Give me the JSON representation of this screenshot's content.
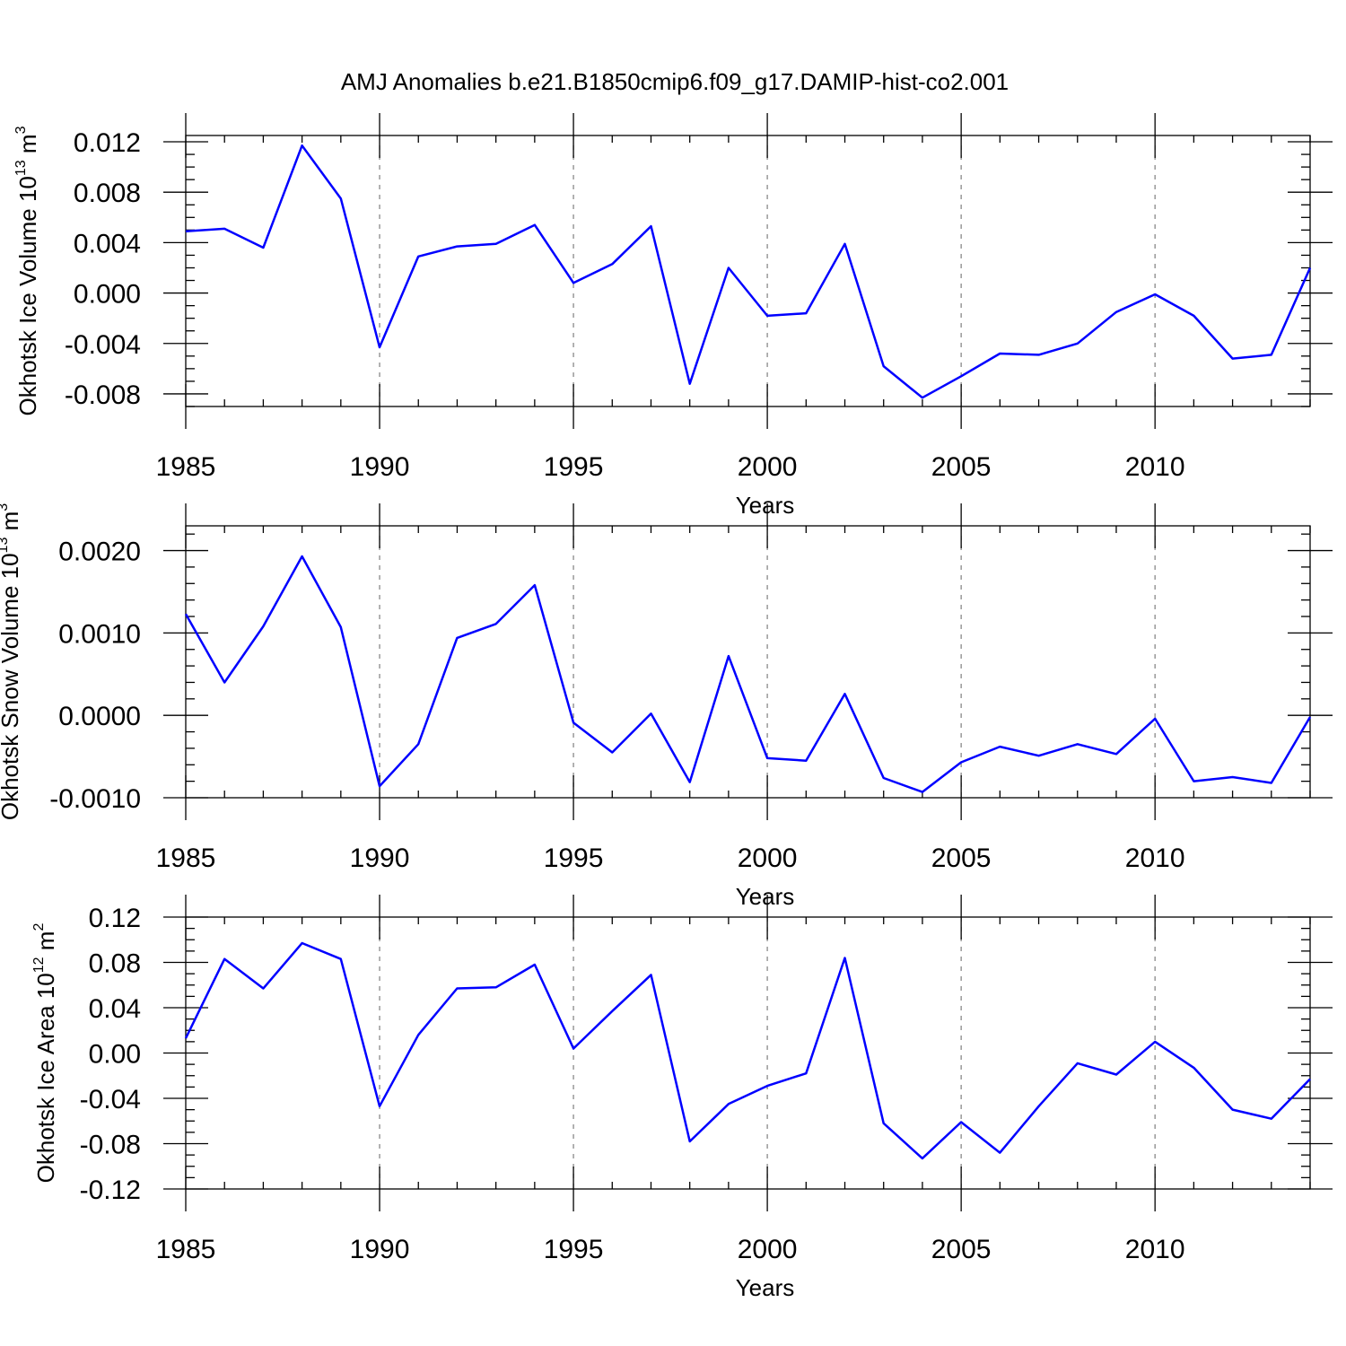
{
  "title": "AMJ Anomalies b.e21.B1850cmip6.f09_g17.DAMIP-hist-co2.001",
  "chart_data": [
    {
      "type": "line",
      "ylabel": {
        "base": "Okhotsk Ice Volume 10",
        "exp": "13",
        "unit": " m",
        "unit_exp": "3"
      },
      "xlabel": "Years",
      "xlim": [
        1985,
        2014
      ],
      "ylim": [
        -0.009,
        0.0125
      ],
      "xticks": [
        1985,
        1990,
        1995,
        2000,
        2005,
        2010
      ],
      "xtick_labels": [
        "1985",
        "1990",
        "1995",
        "2000",
        "2005",
        "2010"
      ],
      "yticks": [
        0.012,
        0.008,
        0.004,
        0.0,
        -0.004,
        -0.008
      ],
      "ytick_labels": [
        "0.012",
        "0.008",
        "0.004",
        "0.000",
        "-0.004",
        "-0.008"
      ],
      "yminor_step": 0.001,
      "x": [
        1985,
        1986,
        1987,
        1988,
        1989,
        1990,
        1991,
        1992,
        1993,
        1994,
        1995,
        1996,
        1997,
        1998,
        1999,
        2000,
        2001,
        2002,
        2003,
        2004,
        2005,
        2006,
        2007,
        2008,
        2009,
        2010,
        2011,
        2012,
        2013,
        2014
      ],
      "series": [
        {
          "color": "#0000ff",
          "values": [
            0.0049,
            0.0051,
            0.0036,
            0.0117,
            0.0075,
            -0.0043,
            0.0029,
            0.0037,
            0.0039,
            0.0054,
            0.0008,
            0.0023,
            0.0053,
            -0.0072,
            0.002,
            -0.0018,
            -0.0016,
            0.0039,
            -0.0058,
            -0.0083,
            -0.0066,
            -0.0048,
            -0.0049,
            -0.004,
            -0.0015,
            -0.0001,
            -0.0018,
            -0.0052,
            -0.0049,
            0.002
          ]
        }
      ]
    },
    {
      "type": "line",
      "ylabel": {
        "base": "Okhotsk Snow Volume 10",
        "exp": "13",
        "unit": " m",
        "unit_exp": "3"
      },
      "xlabel": "Years",
      "xlim": [
        1985,
        2014
      ],
      "ylim": [
        -0.001,
        0.0023
      ],
      "xticks": [
        1985,
        1990,
        1995,
        2000,
        2005,
        2010
      ],
      "xtick_labels": [
        "1985",
        "1990",
        "1995",
        "2000",
        "2005",
        "2010"
      ],
      "yticks": [
        0.002,
        0.001,
        0.0,
        -0.001
      ],
      "ytick_labels": [
        "0.0020",
        "0.0010",
        "0.0000",
        "-0.0010"
      ],
      "yminor_step": 0.0002,
      "x": [
        1985,
        1986,
        1987,
        1988,
        1989,
        1990,
        1991,
        1992,
        1993,
        1994,
        1995,
        1996,
        1997,
        1998,
        1999,
        2000,
        2001,
        2002,
        2003,
        2004,
        2005,
        2006,
        2007,
        2008,
        2009,
        2010,
        2011,
        2012,
        2013,
        2014
      ],
      "series": [
        {
          "color": "#0000ff",
          "values": [
            0.00123,
            0.0004,
            0.00108,
            0.00193,
            0.00107,
            -0.00086,
            -0.00035,
            0.00094,
            0.00111,
            0.00158,
            -9e-05,
            -0.00045,
            2e-05,
            -0.00081,
            0.00072,
            -0.00052,
            -0.00055,
            0.00026,
            -0.00076,
            -0.00093,
            -0.00057,
            -0.00038,
            -0.00049,
            -0.00035,
            -0.00047,
            -4e-05,
            -0.0008,
            -0.00075,
            -0.00082,
            -2e-05
          ]
        }
      ]
    },
    {
      "type": "line",
      "ylabel": {
        "base": "Okhotsk Ice Area 10",
        "exp": "12",
        "unit": " m",
        "unit_exp": "2"
      },
      "xlabel": "Years",
      "xlim": [
        1985,
        2014
      ],
      "ylim": [
        -0.12,
        0.12
      ],
      "xticks": [
        1985,
        1990,
        1995,
        2000,
        2005,
        2010
      ],
      "xtick_labels": [
        "1985",
        "1990",
        "1995",
        "2000",
        "2005",
        "2010"
      ],
      "yticks": [
        0.12,
        0.08,
        0.04,
        0.0,
        -0.04,
        -0.08,
        -0.12
      ],
      "ytick_labels": [
        "0.12",
        "0.08",
        "0.04",
        "0.00",
        "-0.04",
        "-0.08",
        "-0.12"
      ],
      "yminor_step": 0.01,
      "x": [
        1985,
        1986,
        1987,
        1988,
        1989,
        1990,
        1991,
        1992,
        1993,
        1994,
        1995,
        1996,
        1997,
        1998,
        1999,
        2000,
        2001,
        2002,
        2003,
        2004,
        2005,
        2006,
        2007,
        2008,
        2009,
        2010,
        2011,
        2012,
        2013,
        2014
      ],
      "series": [
        {
          "color": "#0000ff",
          "values": [
            0.013,
            0.083,
            0.057,
            0.097,
            0.083,
            -0.047,
            0.016,
            0.057,
            0.058,
            0.078,
            0.004,
            0.037,
            0.069,
            -0.078,
            -0.045,
            -0.029,
            -0.018,
            0.084,
            -0.062,
            -0.093,
            -0.061,
            -0.088,
            -0.047,
            -0.009,
            -0.019,
            0.01,
            -0.013,
            -0.05,
            -0.058,
            -0.023
          ]
        }
      ]
    }
  ]
}
